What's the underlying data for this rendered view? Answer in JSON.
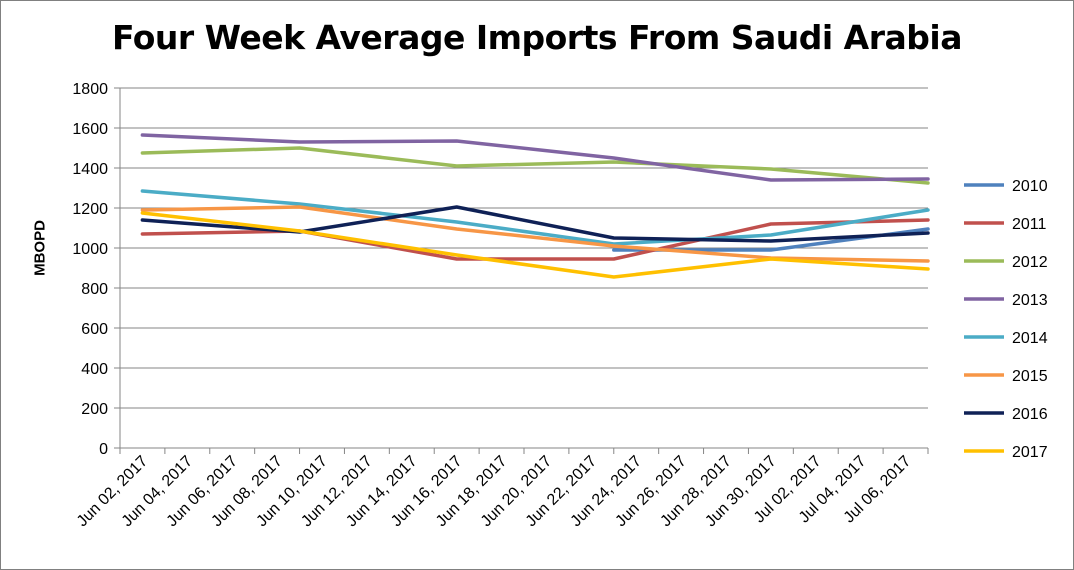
{
  "chart_data": {
    "type": "line",
    "title": "Four Week Average Imports From Saudi Arabia",
    "ylabel": "MBOPD",
    "xlabel": "",
    "ylim": [
      0,
      1800
    ],
    "yticks": [
      0,
      200,
      400,
      600,
      800,
      1000,
      1200,
      1400,
      1600,
      1800
    ],
    "x_tick_labels": [
      "Jun 02, 2017",
      "Jun 04, 2017",
      "Jun 06, 2017",
      "Jun 08, 2017",
      "Jun 10, 2017",
      "Jun 12, 2017",
      "Jun 14, 2017",
      "Jun 16, 2017",
      "Jun 18, 2017",
      "Jun 20, 2017",
      "Jun 22, 2017",
      "Jun 24, 2017",
      "Jun 26, 2017",
      "Jun 28, 2017",
      "Jun 30, 2017",
      "Jul 02, 2017",
      "Jul 04, 2017",
      "Jul 06, 2017"
    ],
    "x_dates": [
      "2017-06-02",
      "2017-06-09",
      "2017-06-16",
      "2017-06-23",
      "2017-06-30",
      "2017-07-07"
    ],
    "grid": "horizontal",
    "legend_position": "right",
    "series": [
      {
        "name": "2010",
        "color": "#4F81BD",
        "values": [
          null,
          null,
          null,
          990,
          990,
          1095
        ]
      },
      {
        "name": "2011",
        "color": "#C0504D",
        "values": [
          1070,
          1085,
          945,
          945,
          1120,
          1140
        ]
      },
      {
        "name": "2012",
        "color": "#9BBB59",
        "values": [
          1475,
          1500,
          1410,
          1430,
          1395,
          1325
        ]
      },
      {
        "name": "2013",
        "color": "#8064A2",
        "values": [
          1565,
          1530,
          1535,
          1450,
          1340,
          1345
        ]
      },
      {
        "name": "2014",
        "color": "#4BACC6",
        "values": [
          1285,
          1220,
          1130,
          1020,
          1065,
          1190
        ]
      },
      {
        "name": "2015",
        "color": "#F79646",
        "values": [
          1190,
          1205,
          1095,
          1010,
          950,
          935
        ]
      },
      {
        "name": "2016",
        "color": "#0F2156",
        "values": [
          1140,
          1080,
          1205,
          1050,
          1035,
          1075
        ]
      },
      {
        "name": "2017",
        "color": "#FFC000",
        "values": [
          1175,
          1085,
          965,
          855,
          945,
          895
        ]
      }
    ]
  }
}
